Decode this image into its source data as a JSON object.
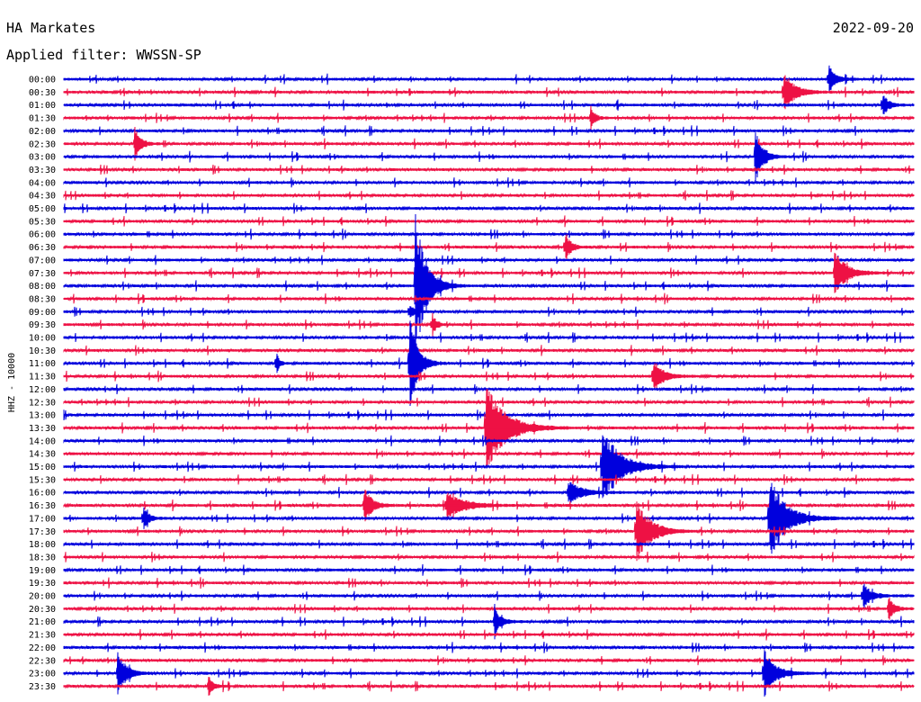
{
  "header": {
    "station": "HA Markates",
    "date": "2022-09-20",
    "filter_label": "Applied filter: WWSSN-SP"
  },
  "chart_data": {
    "type": "line",
    "title": "HA Markates",
    "subtitle": "Applied filter: WWSSN-SP",
    "ylabel": "HHZ - 10000",
    "row_labels": [
      "00:00",
      "00:30",
      "01:00",
      "01:30",
      "02:00",
      "02:30",
      "03:00",
      "03:30",
      "04:00",
      "04:30",
      "05:00",
      "05:30",
      "06:00",
      "06:30",
      "07:00",
      "07:30",
      "08:00",
      "08:30",
      "09:00",
      "09:30",
      "10:00",
      "10:30",
      "11:00",
      "11:30",
      "12:00",
      "12:30",
      "13:00",
      "13:30",
      "14:00",
      "14:30",
      "15:00",
      "15:30",
      "16:00",
      "16:30",
      "17:00",
      "17:30",
      "18:00",
      "18:30",
      "19:00",
      "19:30",
      "20:00",
      "20:30",
      "21:00",
      "21:30",
      "22:00",
      "22:30",
      "23:00",
      "23:30"
    ],
    "minutes_per_line": 30,
    "colors": [
      "#0000dd",
      "#ee1144"
    ],
    "events": [
      {
        "line": "00:00",
        "minute": 27.0,
        "amplitude": 1.0,
        "duration": 0.5
      },
      {
        "line": "00:30",
        "minute": 25.4,
        "amplitude": 1.4,
        "duration": 0.8
      },
      {
        "line": "01:00",
        "minute": 28.9,
        "amplitude": 0.9,
        "duration": 0.4
      },
      {
        "line": "01:30",
        "minute": 18.6,
        "amplitude": 0.8,
        "duration": 0.3
      },
      {
        "line": "02:30",
        "minute": 2.5,
        "amplitude": 1.3,
        "duration": 0.4
      },
      {
        "line": "03:00",
        "minute": 24.4,
        "amplitude": 2.3,
        "duration": 0.5
      },
      {
        "line": "06:30",
        "minute": 17.7,
        "amplitude": 1.1,
        "duration": 0.4
      },
      {
        "line": "07:30",
        "minute": 27.2,
        "amplitude": 1.5,
        "duration": 0.9
      },
      {
        "line": "08:00",
        "minute": 12.4,
        "amplitude": 5.0,
        "duration": 0.8
      },
      {
        "line": "09:00",
        "minute": 12.2,
        "amplitude": 0.6,
        "duration": 0.3
      },
      {
        "line": "09:30",
        "minute": 13.0,
        "amplitude": 0.8,
        "duration": 0.3
      },
      {
        "line": "11:00",
        "minute": 12.2,
        "amplitude": 3.3,
        "duration": 0.6
      },
      {
        "line": "11:00",
        "minute": 7.5,
        "amplitude": 0.9,
        "duration": 0.2
      },
      {
        "line": "11:30",
        "minute": 20.8,
        "amplitude": 1.2,
        "duration": 0.7
      },
      {
        "line": "13:30",
        "minute": 14.9,
        "amplitude": 3.1,
        "duration": 1.4
      },
      {
        "line": "15:00",
        "minute": 19.0,
        "amplitude": 2.7,
        "duration": 1.3
      },
      {
        "line": "16:00",
        "minute": 17.8,
        "amplitude": 0.8,
        "duration": 1.0
      },
      {
        "line": "16:30",
        "minute": 10.6,
        "amplitude": 1.2,
        "duration": 0.6
      },
      {
        "line": "16:30",
        "minute": 13.5,
        "amplitude": 0.9,
        "duration": 1.3
      },
      {
        "line": "17:00",
        "minute": 24.9,
        "amplitude": 2.9,
        "duration": 1.2
      },
      {
        "line": "17:00",
        "minute": 2.8,
        "amplitude": 0.8,
        "duration": 0.4
      },
      {
        "line": "17:30",
        "minute": 20.2,
        "amplitude": 2.4,
        "duration": 1.0
      },
      {
        "line": "20:00",
        "minute": 28.2,
        "amplitude": 0.9,
        "duration": 0.6
      },
      {
        "line": "20:30",
        "minute": 29.1,
        "amplitude": 0.9,
        "duration": 0.4
      },
      {
        "line": "21:00",
        "minute": 15.2,
        "amplitude": 0.9,
        "duration": 0.5
      },
      {
        "line": "23:00",
        "minute": 1.9,
        "amplitude": 1.6,
        "duration": 0.6
      },
      {
        "line": "23:00",
        "minute": 24.7,
        "amplitude": 1.8,
        "duration": 0.8
      },
      {
        "line": "23:30",
        "minute": 5.1,
        "amplitude": 0.8,
        "duration": 0.3
      }
    ]
  }
}
